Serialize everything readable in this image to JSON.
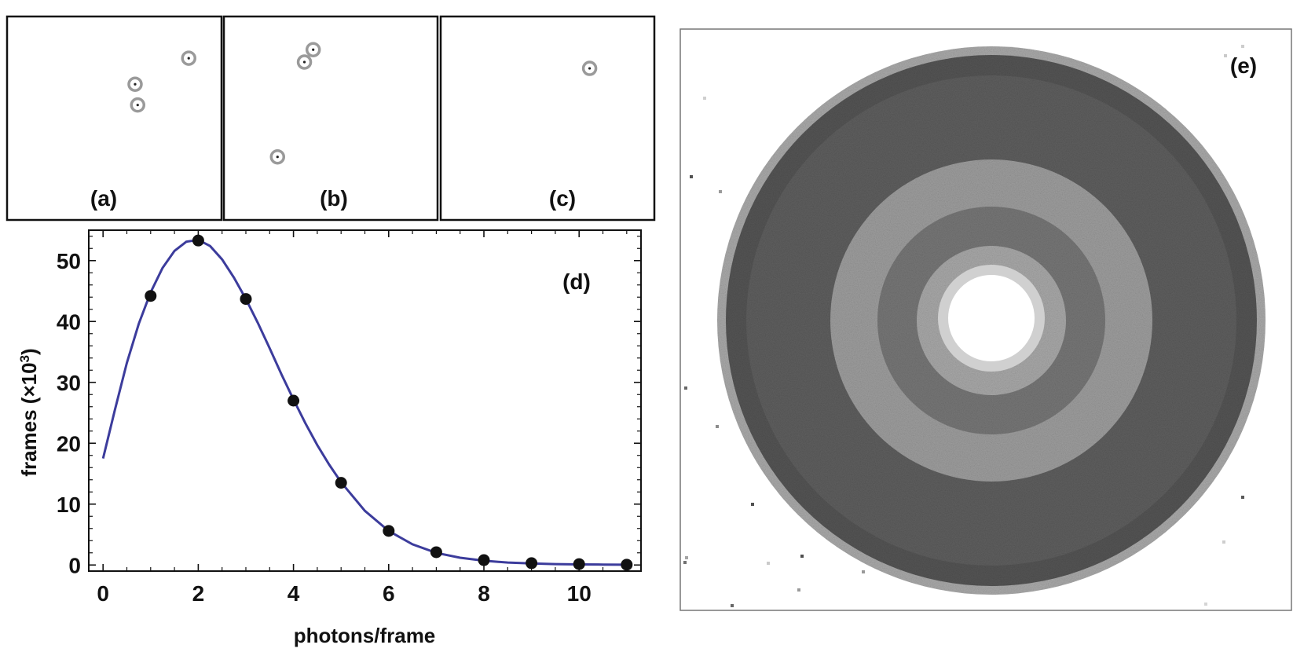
{
  "panels": {
    "a": {
      "label": "(a)",
      "spots": [
        [
          0.847,
          0.795
        ],
        [
          0.597,
          0.667
        ],
        [
          0.609,
          0.565
        ]
      ]
    },
    "b": {
      "label": "(b)",
      "spots": [
        [
          0.418,
          0.837
        ],
        [
          0.377,
          0.776
        ],
        [
          0.251,
          0.31
        ]
      ]
    },
    "c": {
      "label": "(c)",
      "spots": [
        [
          0.697,
          0.745
        ]
      ]
    },
    "e": {
      "label": "(e)"
    }
  },
  "chart_data": {
    "type": "scatter",
    "panel_label": "(d)",
    "xlabel": "photons/frame",
    "ylabel_text": "frames (×10",
    "ylabel_sup": "3",
    "ylabel_close": ")",
    "xlim": [
      -0.3,
      11.3
    ],
    "ylim": [
      -1,
      55
    ],
    "xticks": [
      0,
      2,
      4,
      6,
      8,
      10
    ],
    "yticks": [
      0,
      10,
      20,
      30,
      40,
      50
    ],
    "series": [
      {
        "kind": "points",
        "x": [
          1,
          2,
          3,
          4,
          5,
          6,
          7,
          8,
          9,
          10,
          11
        ],
        "y": [
          44.2,
          53.3,
          43.7,
          27.0,
          13.5,
          5.6,
          2.1,
          0.8,
          0.3,
          0.15,
          0.05
        ],
        "color": "#111111"
      },
      {
        "kind": "fit",
        "x": [
          0,
          0.25,
          0.5,
          0.75,
          1,
          1.25,
          1.5,
          1.75,
          2,
          2.25,
          2.5,
          2.75,
          3,
          3.25,
          3.5,
          3.75,
          4,
          4.25,
          4.5,
          4.75,
          5,
          5.5,
          6,
          6.5,
          7,
          7.5,
          8,
          8.5,
          9,
          9.5,
          10,
          10.5,
          11
        ],
        "y": [
          17.5,
          25.5,
          33.2,
          39.6,
          44.8,
          48.8,
          51.6,
          53.1,
          53.4,
          52.4,
          50.2,
          47.2,
          43.7,
          39.8,
          35.6,
          31.3,
          27.2,
          23.3,
          19.7,
          16.5,
          13.6,
          8.9,
          5.6,
          3.4,
          2.0,
          1.2,
          0.7,
          0.4,
          0.25,
          0.15,
          0.1,
          0.07,
          0.05
        ],
        "color": "#3c3c9c"
      }
    ]
  }
}
